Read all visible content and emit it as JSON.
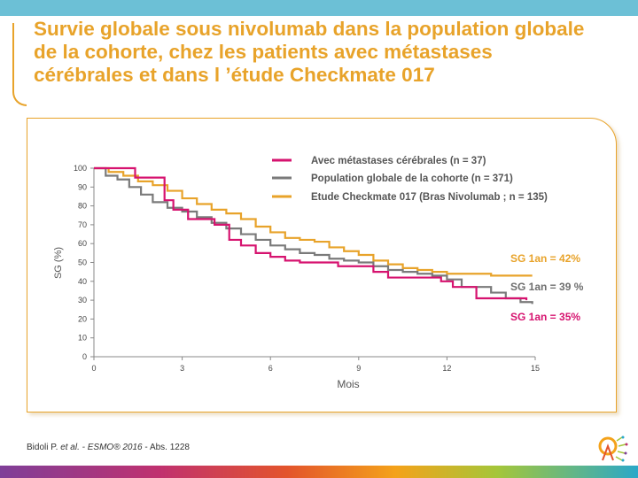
{
  "title_lines": [
    "Survie globale sous nivolumab dans la population globale",
    "de la cohorte, chez les patients avec métastases",
    "cérébrales et dans l ’étude Checkmate 017"
  ],
  "footer": {
    "author": "Bidoli P.",
    "etal": "et al.",
    "journal": "- ESMO® 2016",
    "abs": "- Abs. 1228"
  },
  "colors": {
    "accent": "#e8a32a",
    "brain_mets": "#d6136f",
    "global": "#7a7a7a",
    "checkmate": "#e8a32a"
  },
  "chart_data": {
    "type": "line",
    "title": "",
    "xlabel": "Mois",
    "ylabel": "SG (%)",
    "xlim": [
      0,
      15
    ],
    "ylim": [
      0,
      100
    ],
    "xticks": [
      0,
      3,
      6,
      9,
      12,
      15
    ],
    "yticks": [
      0,
      10,
      20,
      30,
      40,
      50,
      60,
      70,
      80,
      90,
      100
    ],
    "grid": false,
    "legend_position": "top-right",
    "series": [
      {
        "name": "Avec métastases  cérébrales (n = 37)",
        "color": "#d6136f",
        "x": [
          0,
          1.25,
          1.4,
          2.4,
          2.7,
          3.2,
          4.1,
          4.6,
          5.0,
          5.5,
          6.0,
          6.5,
          7.0,
          8.3,
          9.5,
          10.0,
          11.4,
          11.8,
          12.2,
          13.0,
          14.0,
          14.7
        ],
        "y": [
          100,
          100,
          95,
          83,
          78,
          73,
          70,
          62,
          59,
          55,
          53,
          51,
          50,
          48,
          45,
          42,
          42,
          40,
          37,
          31,
          31,
          30
        ]
      },
      {
        "name": "Population  globale de la cohorte (n = 371)",
        "color": "#7a7a7a",
        "x": [
          0,
          0.4,
          0.8,
          1.2,
          1.6,
          2.0,
          2.5,
          3.0,
          3.5,
          4.0,
          4.5,
          5.0,
          5.5,
          6.0,
          6.5,
          7.0,
          7.5,
          8.0,
          8.5,
          9.0,
          9.5,
          10.0,
          10.5,
          11.0,
          11.5,
          12.0,
          12.5,
          13.0,
          13.5,
          14.0,
          14.5,
          14.9
        ],
        "y": [
          100,
          96,
          94,
          90,
          86,
          82,
          79,
          77,
          74,
          71,
          68,
          65,
          62,
          59,
          57,
          55,
          54,
          52,
          51,
          50,
          48,
          46,
          45,
          44,
          43,
          41,
          37,
          37,
          34,
          31,
          29,
          28
        ]
      },
      {
        "name": "Etude Checkmate 017 (Bras Nivolumab ; n = 135)",
        "color": "#e8a32a",
        "x": [
          0,
          0.5,
          1.0,
          1.5,
          2.0,
          2.5,
          3.0,
          3.5,
          4.0,
          4.5,
          5.0,
          5.5,
          6.0,
          6.5,
          7.0,
          7.5,
          8.0,
          8.5,
          9.0,
          9.5,
          10.0,
          10.5,
          11.0,
          11.5,
          12.0,
          12.5,
          13.0,
          13.5,
          14.0,
          14.5,
          14.9
        ],
        "y": [
          100,
          98,
          96,
          93,
          91,
          88,
          84,
          81,
          78,
          76,
          73,
          69,
          66,
          63,
          62,
          61,
          58,
          56,
          54,
          51,
          49,
          47,
          46,
          45,
          44,
          44,
          44,
          43,
          43,
          43,
          43
        ]
      }
    ],
    "annotations": [
      {
        "text": "SG  1an = 42%",
        "color": "#e8a32a"
      },
      {
        "text": "SG  1an = 39 %",
        "color": "#6e6e6e"
      },
      {
        "text": "SG  1an = 35%",
        "color": "#d6136f"
      }
    ]
  }
}
